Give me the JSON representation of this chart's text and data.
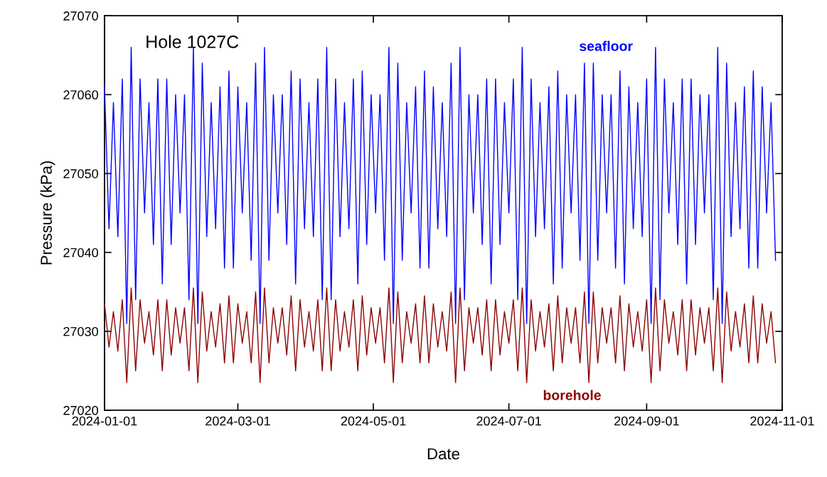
{
  "chart_data": {
    "type": "line",
    "xlabel": "Date",
    "ylabel": "Pressure (kPa)",
    "annotations": [
      "Hole 1027C"
    ],
    "x": [
      "2024-01-01",
      "2024-01-03",
      "2024-01-05",
      "2024-01-07",
      "2024-01-09",
      "2024-01-11",
      "2024-01-13",
      "2024-01-15",
      "2024-01-17",
      "2024-01-19",
      "2024-01-21",
      "2024-01-23",
      "2024-01-25",
      "2024-01-27",
      "2024-01-29",
      "2024-01-31",
      "2024-02-02",
      "2024-02-04",
      "2024-02-06",
      "2024-02-08",
      "2024-02-10",
      "2024-02-12",
      "2024-02-14",
      "2024-02-16",
      "2024-02-18",
      "2024-02-20",
      "2024-02-22",
      "2024-02-24",
      "2024-02-26",
      "2024-02-28",
      "2024-03-01",
      "2024-03-03",
      "2024-03-05",
      "2024-03-07",
      "2024-03-09",
      "2024-03-11",
      "2024-03-13",
      "2024-03-15",
      "2024-03-17",
      "2024-03-19",
      "2024-03-21",
      "2024-03-23",
      "2024-03-25",
      "2024-03-27",
      "2024-03-29",
      "2024-03-31",
      "2024-04-02",
      "2024-04-04",
      "2024-04-06",
      "2024-04-08",
      "2024-04-10",
      "2024-04-12",
      "2024-04-14",
      "2024-04-16",
      "2024-04-18",
      "2024-04-20",
      "2024-04-22",
      "2024-04-24",
      "2024-04-26",
      "2024-04-28",
      "2024-04-30",
      "2024-05-02",
      "2024-05-04",
      "2024-05-06",
      "2024-05-08",
      "2024-05-10",
      "2024-05-12",
      "2024-05-14",
      "2024-05-16",
      "2024-05-18",
      "2024-05-20",
      "2024-05-22",
      "2024-05-24",
      "2024-05-26",
      "2024-05-28",
      "2024-05-30",
      "2024-06-01",
      "2024-06-03",
      "2024-06-05",
      "2024-06-07",
      "2024-06-09",
      "2024-06-11",
      "2024-06-13",
      "2024-06-15",
      "2024-06-17",
      "2024-06-19",
      "2024-06-21",
      "2024-06-23",
      "2024-06-25",
      "2024-06-27",
      "2024-06-29",
      "2024-07-01",
      "2024-07-03",
      "2024-07-05",
      "2024-07-07",
      "2024-07-09",
      "2024-07-11",
      "2024-07-13",
      "2024-07-15",
      "2024-07-17",
      "2024-07-19",
      "2024-07-21",
      "2024-07-23",
      "2024-07-25",
      "2024-07-27",
      "2024-07-29",
      "2024-07-31",
      "2024-08-02",
      "2024-08-04",
      "2024-08-06",
      "2024-08-08",
      "2024-08-10",
      "2024-08-12",
      "2024-08-14",
      "2024-08-16",
      "2024-08-18",
      "2024-08-20",
      "2024-08-22",
      "2024-08-24",
      "2024-08-26",
      "2024-08-28",
      "2024-08-30",
      "2024-09-01",
      "2024-09-03",
      "2024-09-05",
      "2024-09-07",
      "2024-09-09",
      "2024-09-11",
      "2024-09-13",
      "2024-09-15",
      "2024-09-17",
      "2024-09-19",
      "2024-09-21",
      "2024-09-23",
      "2024-09-25",
      "2024-09-27",
      "2024-09-29",
      "2024-10-01",
      "2024-10-03",
      "2024-10-05",
      "2024-10-07",
      "2024-10-09",
      "2024-10-11",
      "2024-10-13",
      "2024-10-15",
      "2024-10-17",
      "2024-10-19",
      "2024-10-21",
      "2024-10-23",
      "2024-10-25",
      "2024-10-27",
      "2024-10-29"
    ],
    "series": [
      {
        "name": "seafloor",
        "color": "#0000ff",
        "values": [
          27061,
          27043,
          27059,
          27042,
          27062,
          27031,
          27066,
          27034,
          27062,
          27045,
          27059,
          27041,
          27062,
          27036,
          27062,
          27041,
          27060,
          27045,
          27060,
          27034,
          27066,
          27031,
          27064,
          27042,
          27059,
          27043,
          27061,
          27038,
          27063,
          27038,
          27061,
          27045,
          27059,
          27039,
          27064,
          27031,
          27066,
          27039,
          27060,
          27045,
          27060,
          27041,
          27063,
          27036,
          27062,
          27043,
          27059,
          27042,
          27062,
          27034,
          27066,
          27034,
          27062,
          27042,
          27059,
          27043,
          27062,
          27036,
          27063,
          27041,
          27060,
          27045,
          27060,
          27039,
          27066,
          27031,
          27064,
          27039,
          27059,
          27045,
          27061,
          27038,
          27063,
          27038,
          27061,
          27043,
          27059,
          27042,
          27064,
          27031,
          27066,
          27034,
          27060,
          27045,
          27060,
          27041,
          27062,
          27036,
          27062,
          27041,
          27059,
          27045,
          27062,
          27034,
          27066,
          27031,
          27062,
          27042,
          27059,
          27043,
          27061,
          27036,
          27063,
          27038,
          27060,
          27045,
          27060,
          27039,
          27064,
          27031,
          27064,
          27039,
          27060,
          27045,
          27060,
          27038,
          27063,
          27036,
          27061,
          27043,
          27059,
          27042,
          27062,
          27031,
          27066,
          27034,
          27062,
          27045,
          27059,
          27041,
          27062,
          27036,
          27062,
          27041,
          27060,
          27045,
          27060,
          27034,
          27066,
          27031,
          27064,
          27042,
          27059,
          27043,
          27061,
          27038,
          27063,
          27038,
          27061,
          27045,
          27059,
          27039
        ]
      },
      {
        "name": "borehole",
        "color": "#8b0000",
        "values": [
          27033.5,
          27028,
          27032.5,
          27027.5,
          27034,
          27023.5,
          27035.5,
          27025,
          27034,
          27028.5,
          27032.5,
          27027,
          27034,
          27025,
          27034,
          27027,
          27033,
          27028.5,
          27033,
          27025,
          27035.5,
          27023.5,
          27035,
          27027.5,
          27032.5,
          27028,
          27033.5,
          27026,
          27034.5,
          27026,
          27033.5,
          27028.5,
          27032.5,
          27026,
          27035,
          27023.5,
          27035.5,
          27026,
          27033,
          27028.5,
          27033,
          27027,
          27034.5,
          27025,
          27034,
          27028,
          27032.5,
          27027.5,
          27034,
          27025,
          27035.5,
          27025,
          27034,
          27027.5,
          27032.5,
          27028,
          27034,
          27025,
          27034.5,
          27027,
          27033,
          27028.5,
          27033,
          27026,
          27035.5,
          27023.5,
          27035,
          27026,
          27032.5,
          27028.5,
          27033.5,
          27026,
          27034.5,
          27026,
          27033.5,
          27028,
          27032.5,
          27027.5,
          27035,
          27023.5,
          27035.5,
          27025,
          27033,
          27028.5,
          27033,
          27027,
          27034,
          27025,
          27034,
          27027,
          27032.5,
          27028.5,
          27034,
          27025,
          27035.5,
          27023.5,
          27034,
          27027.5,
          27032.5,
          27028,
          27033.5,
          27025,
          27034.5,
          27026,
          27033,
          27028.5,
          27033,
          27026,
          27035,
          27023.5,
          27035,
          27026,
          27033,
          27028.5,
          27033,
          27026,
          27034.5,
          27025,
          27033.5,
          27028,
          27032.5,
          27027.5,
          27034,
          27023.5,
          27035.5,
          27025,
          27034,
          27028.5,
          27032.5,
          27027,
          27034,
          27025,
          27034,
          27027,
          27033,
          27028.5,
          27033,
          27025,
          27035.5,
          27023.5,
          27035,
          27027.5,
          27032.5,
          27028,
          27033.5,
          27026,
          27034.5,
          27026,
          27033.5,
          27028.5,
          27032.5,
          27026
        ]
      }
    ],
    "xlim": [
      "2024-01-01",
      "2024-11-01"
    ],
    "xticks": [
      "2024-01-01",
      "2024-03-01",
      "2024-05-01",
      "2024-07-01",
      "2024-09-01",
      "2024-11-01"
    ],
    "ylim": [
      27020,
      27070
    ],
    "yticks": [
      27020,
      27030,
      27040,
      27050,
      27060,
      27070
    ],
    "grid": false,
    "legend": false,
    "marker": "none",
    "line_style": "solid"
  }
}
